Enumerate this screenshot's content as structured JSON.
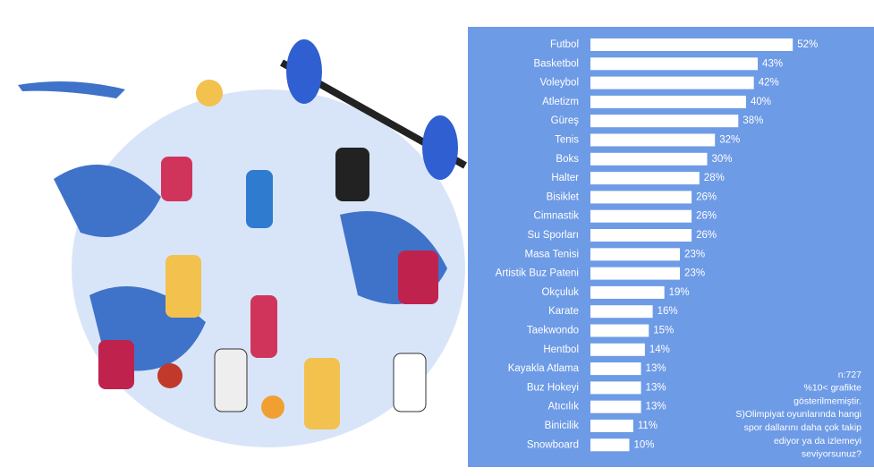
{
  "chart_data": {
    "type": "bar",
    "orientation": "horizontal",
    "color": "#ffffff",
    "categories": [
      "Futbol",
      "Basketbol",
      "Voleybol",
      "Atletizm",
      "Güreş",
      "Tenis",
      "Boks",
      "Halter",
      "Bisiklet",
      "Cimnastik",
      "Su Sporları",
      "Masa Tenisi",
      "Artistik Buz Pateni",
      "Okçuluk",
      "Karate",
      "Taekwondo",
      "Hentbol",
      "Kayakla Atlama",
      "Buz Hokeyi",
      "Atıcılık",
      "Binicilik",
      "Snowboard"
    ],
    "values": [
      52,
      43,
      42,
      40,
      38,
      32,
      30,
      28,
      26,
      26,
      26,
      23,
      23,
      19,
      16,
      15,
      14,
      13,
      13,
      13,
      11,
      10
    ],
    "value_labels": [
      "52%",
      "43%",
      "42%",
      "40%",
      "38%",
      "32%",
      "30%",
      "28%",
      "26%",
      "26%",
      "26%",
      "23%",
      "23%",
      "19%",
      "16%",
      "15%",
      "14%",
      "13%",
      "13%",
      "13%",
      "11%",
      "10%"
    ],
    "note": [
      "n:727",
      "%10< grafikte",
      "gösterilmemiştir.",
      "S)Olimpiyat oyunlarında hangi",
      "spor dallarını daha çok takip",
      "ediyor ya da izlemeyi",
      "seviyorsunuz?"
    ]
  }
}
